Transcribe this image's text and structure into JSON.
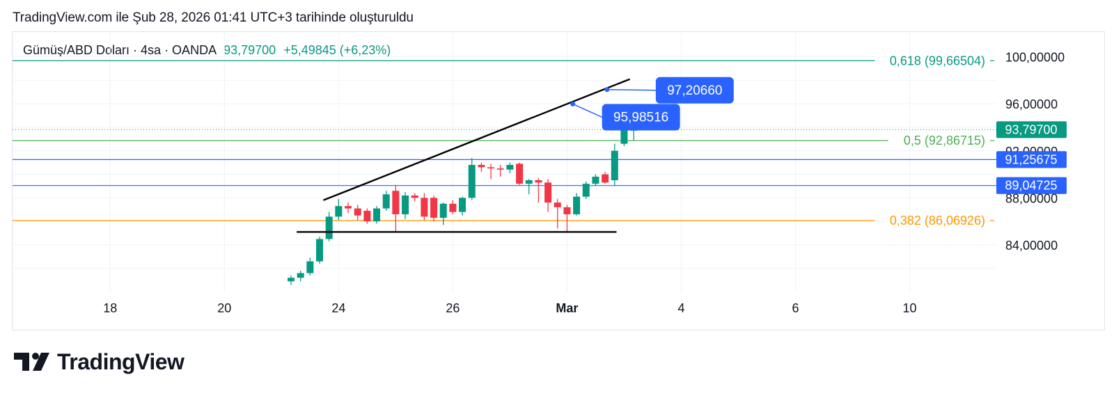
{
  "caption": "TradingView.com ile Şub 28, 2026 01:41 UTC+3 tarihinde oluşturuldu",
  "legend": {
    "symbol": "Gümüş/ABD Doları · 4sa · OANDA",
    "last_price": "93,79700",
    "change": "+5,49845 (+6,23%)"
  },
  "brand": {
    "name": "TradingView",
    "icon": "tradingview-logo-icon"
  },
  "colors": {
    "up": "#089981",
    "down": "#f23645",
    "fib_618": "#089981",
    "fib_5": "#4caf50",
    "fib_382": "#ff9800",
    "hline": "#2962ff",
    "trend": "#000000",
    "price_tag": "#089981",
    "label_bg": "#2962ff"
  },
  "chart_data": {
    "type": "candlestick",
    "y_axis": {
      "ticks": [
        "100,00000",
        "96,00000",
        "92,00000",
        "88,00000",
        "84,00000"
      ],
      "tick_values": [
        100,
        96,
        92,
        88,
        84
      ]
    },
    "x_axis": {
      "ticks": [
        {
          "label": "18",
          "bar": -19
        },
        {
          "label": "20",
          "bar": -7
        },
        {
          "label": "24",
          "bar": 5
        },
        {
          "label": "26",
          "bar": 17
        },
        {
          "label": "Mar",
          "bar": 29,
          "bold": true
        },
        {
          "label": "4",
          "bar": 41
        },
        {
          "label": "6",
          "bar": 53
        },
        {
          "label": "10",
          "bar": 65
        }
      ]
    },
    "candles": [
      {
        "o": 80.9,
        "h": 81.4,
        "l": 80.6,
        "c": 81.2
      },
      {
        "o": 81.2,
        "h": 81.8,
        "l": 80.9,
        "c": 81.6
      },
      {
        "o": 81.6,
        "h": 82.9,
        "l": 81.4,
        "c": 82.6
      },
      {
        "o": 82.6,
        "h": 84.7,
        "l": 82.4,
        "c": 84.5
      },
      {
        "o": 84.5,
        "h": 86.8,
        "l": 84.3,
        "c": 86.4
      },
      {
        "o": 86.4,
        "h": 87.9,
        "l": 86.1,
        "c": 87.3
      },
      {
        "o": 87.3,
        "h": 87.6,
        "l": 86.7,
        "c": 87.1
      },
      {
        "o": 87.1,
        "h": 87.4,
        "l": 86.1,
        "c": 86.5
      },
      {
        "o": 86.9,
        "h": 87.1,
        "l": 85.8,
        "c": 86.0
      },
      {
        "o": 86.0,
        "h": 87.3,
        "l": 85.8,
        "c": 87.1
      },
      {
        "o": 87.1,
        "h": 88.6,
        "l": 86.9,
        "c": 88.3
      },
      {
        "o": 88.6,
        "h": 89.1,
        "l": 85.1,
        "c": 86.6
      },
      {
        "o": 86.6,
        "h": 88.5,
        "l": 86.2,
        "c": 88.2
      },
      {
        "o": 88.2,
        "h": 88.4,
        "l": 87.7,
        "c": 88.0
      },
      {
        "o": 88.0,
        "h": 88.4,
        "l": 86.1,
        "c": 86.4
      },
      {
        "o": 88.0,
        "h": 88.2,
        "l": 86.0,
        "c": 86.3
      },
      {
        "o": 86.3,
        "h": 87.6,
        "l": 85.7,
        "c": 87.5
      },
      {
        "o": 87.5,
        "h": 87.8,
        "l": 86.6,
        "c": 86.8
      },
      {
        "o": 86.8,
        "h": 88.1,
        "l": 86.5,
        "c": 88.0
      },
      {
        "o": 88.0,
        "h": 91.4,
        "l": 87.8,
        "c": 90.8
      },
      {
        "o": 90.8,
        "h": 91.0,
        "l": 90.2,
        "c": 90.6
      },
      {
        "o": 90.6,
        "h": 90.9,
        "l": 89.6,
        "c": 90.5
      },
      {
        "o": 90.5,
        "h": 90.8,
        "l": 89.8,
        "c": 90.4
      },
      {
        "o": 90.4,
        "h": 91.0,
        "l": 90.1,
        "c": 90.8
      },
      {
        "o": 90.9,
        "h": 91.0,
        "l": 89.1,
        "c": 89.2
      },
      {
        "o": 89.2,
        "h": 89.6,
        "l": 88.3,
        "c": 89.5
      },
      {
        "o": 89.5,
        "h": 89.7,
        "l": 87.6,
        "c": 89.3
      },
      {
        "o": 89.3,
        "h": 89.6,
        "l": 86.8,
        "c": 87.6
      },
      {
        "o": 87.6,
        "h": 87.9,
        "l": 85.4,
        "c": 87.2
      },
      {
        "o": 87.2,
        "h": 87.4,
        "l": 85.1,
        "c": 86.6
      },
      {
        "o": 86.6,
        "h": 88.4,
        "l": 86.5,
        "c": 88.1
      },
      {
        "o": 88.1,
        "h": 89.4,
        "l": 87.9,
        "c": 89.2
      },
      {
        "o": 89.2,
        "h": 90.0,
        "l": 89.0,
        "c": 89.8
      },
      {
        "o": 90.0,
        "h": 90.2,
        "l": 89.2,
        "c": 89.3
      },
      {
        "o": 89.5,
        "h": 92.6,
        "l": 89.0,
        "c": 92.0
      },
      {
        "o": 92.6,
        "h": 94.2,
        "l": 92.4,
        "c": 93.9
      },
      {
        "o": 93.8,
        "h": 94.0,
        "l": 92.9,
        "c": 93.8
      }
    ],
    "horizontal_lines": [
      {
        "label": "0,618 (99,66504)",
        "value": 99.66504,
        "kind": "fib_618"
      },
      {
        "label": "0,5 (92,86715)",
        "value": 92.86715,
        "kind": "fib_5"
      },
      {
        "label": "0,382 (86,06926)",
        "value": 86.06926,
        "kind": "fib_382"
      },
      {
        "label": "91,25675",
        "value": 91.25675,
        "kind": "hline"
      },
      {
        "label": "89,04725",
        "value": 89.04725,
        "kind": "hline"
      }
    ],
    "last_price": {
      "label": "93,79700",
      "value": 93.797
    },
    "trendlines": [
      {
        "from": {
          "bar": 3.4,
          "value": 87.8
        },
        "to": {
          "bar": 35.6,
          "value": 98.1
        }
      },
      {
        "from": {
          "bar": 0.6,
          "value": 85.1
        },
        "to": {
          "bar": 34.2,
          "value": 85.1
        }
      }
    ],
    "callouts": [
      {
        "label": "97,20660",
        "value": 97.2066,
        "bar": 33.2
      },
      {
        "label": "95,98516",
        "value": 95.98516,
        "bar": 29.6
      }
    ]
  }
}
